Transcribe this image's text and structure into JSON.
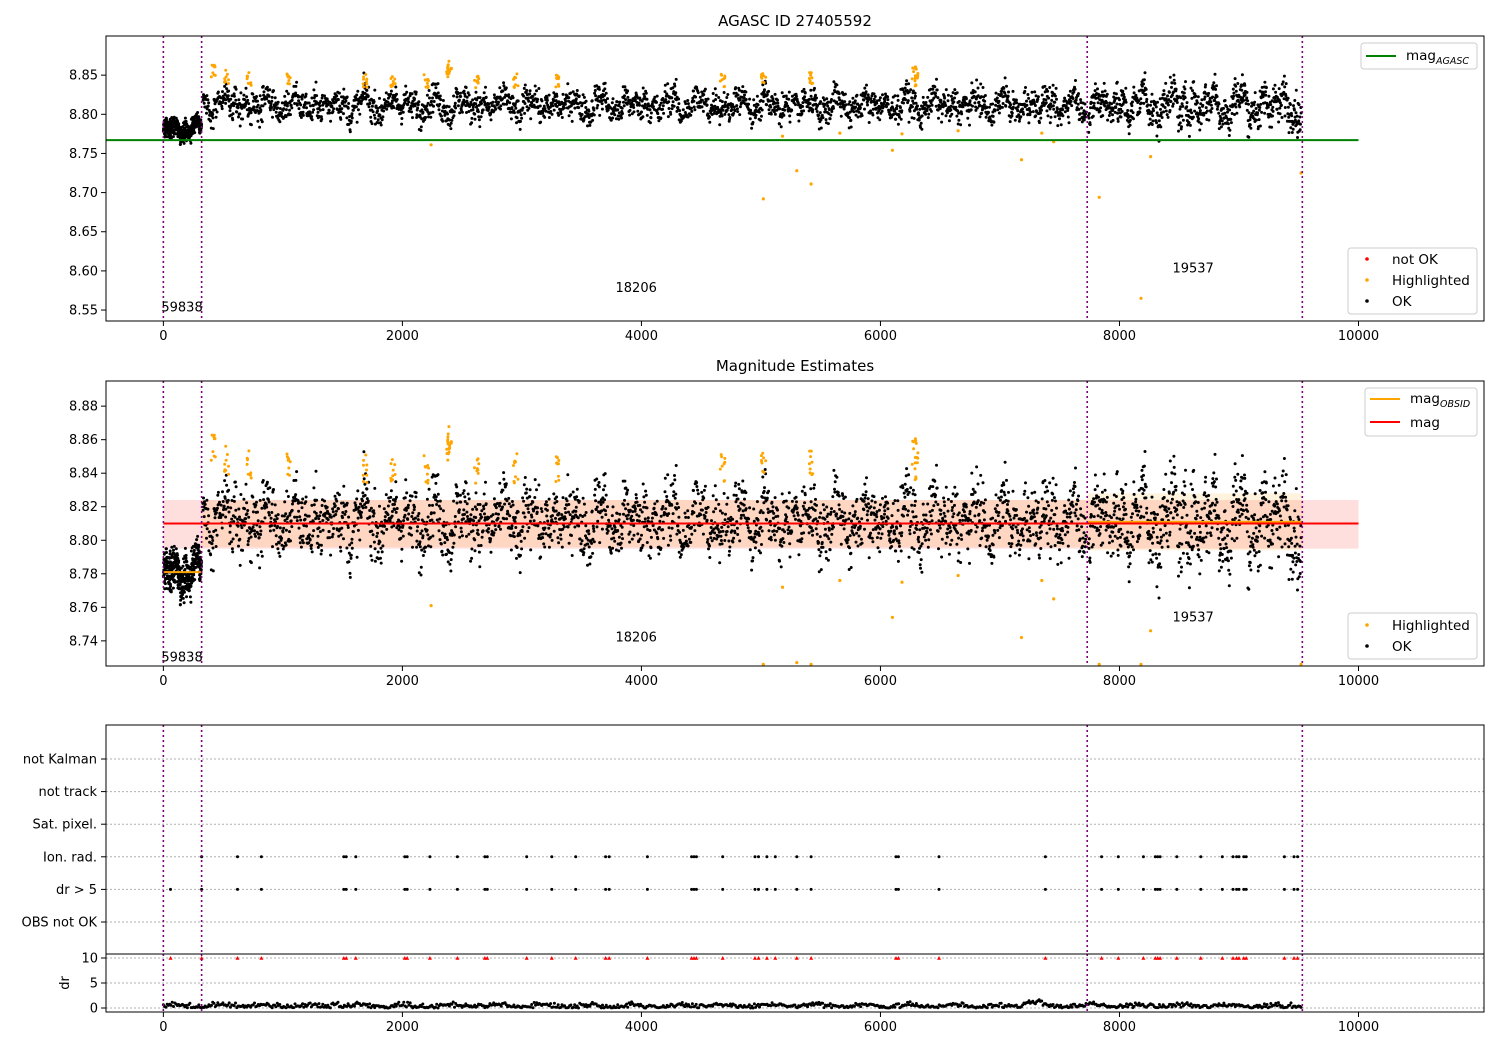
{
  "chart_data": [
    {
      "type": "scatter",
      "title": "AGASC ID 27405592",
      "xlabel": "",
      "ylabel": "",
      "xlim": [
        -480,
        11050
      ],
      "ylim": [
        8.536,
        8.9
      ],
      "x_ticks": [
        "0",
        "2000",
        "4000",
        "6000",
        "8000",
        "10000"
      ],
      "y_ticks": [
        "8.55",
        "8.60",
        "8.65",
        "8.70",
        "8.75",
        "8.80",
        "8.85"
      ],
      "reference_lines": [
        {
          "name": "mag_AGASC",
          "value": 8.767,
          "x_range": [
            0,
            10000
          ],
          "color": "#008000"
        }
      ],
      "obsid_boundaries": [
        0,
        320,
        7730,
        9530
      ],
      "obsid_labels": [
        {
          "text": "59838",
          "x": 0,
          "y": 8.553
        },
        {
          "text": "18206",
          "x": 3800,
          "y": 8.578
        },
        {
          "text": "19537",
          "x": 8460,
          "y": 8.603
        }
      ],
      "series_names": [
        "not OK",
        "Highlighted",
        "OK"
      ],
      "series_colors": [
        "#ff0000",
        "#ffa500",
        "#000000"
      ],
      "highlighted": [
        [
          2240,
          8.761
        ],
        [
          5020,
          8.692
        ],
        [
          5180,
          8.772
        ],
        [
          5300,
          8.728
        ],
        [
          5420,
          8.711
        ],
        [
          5660,
          8.776
        ],
        [
          6100,
          8.754
        ],
        [
          6180,
          8.775
        ],
        [
          6650,
          8.779
        ],
        [
          7180,
          8.742
        ],
        [
          7350,
          8.776
        ],
        [
          7450,
          8.765
        ],
        [
          7830,
          8.694
        ],
        [
          8180,
          8.565
        ],
        [
          8260,
          8.746
        ],
        [
          9520,
          8.725
        ]
      ],
      "legend": [
        {
          "label": "mag",
          "sub": "AGASC"
        },
        {
          "label": "not OK"
        },
        {
          "label": "Highlighted"
        },
        {
          "label": "OK"
        }
      ]
    },
    {
      "type": "scatter",
      "title": "Magnitude Estimates",
      "xlabel": "",
      "ylabel": "",
      "xlim": [
        -480,
        11050
      ],
      "ylim": [
        8.725,
        8.895
      ],
      "x_ticks": [
        "0",
        "2000",
        "4000",
        "6000",
        "8000",
        "10000"
      ],
      "y_ticks": [
        "8.74",
        "8.76",
        "8.78",
        "8.80",
        "8.82",
        "8.84",
        "8.86",
        "8.88"
      ],
      "mean_mag": 8.81,
      "mean_band": [
        8.795,
        8.824
      ],
      "obsid_mags": [
        {
          "x_range": [
            0,
            320
          ],
          "value": 8.781
        },
        {
          "x_range": [
            320,
            7730
          ],
          "value": 8.81
        },
        {
          "x_range": [
            7730,
            9530
          ],
          "value": 8.811
        }
      ],
      "obsid_boundaries": [
        0,
        320,
        7730,
        9530
      ],
      "obsid_labels": [
        {
          "text": "59838",
          "x": 0,
          "y": 8.73
        },
        {
          "text": "18206",
          "x": 3800,
          "y": 8.742
        },
        {
          "text": "19537",
          "x": 8460,
          "y": 8.754
        }
      ],
      "series_names": [
        "Highlighted",
        "OK"
      ],
      "highlighted": [
        [
          2240,
          8.761
        ],
        [
          5180,
          8.772
        ],
        [
          5300,
          8.727
        ],
        [
          5660,
          8.776
        ],
        [
          6100,
          8.754
        ],
        [
          6180,
          8.775
        ],
        [
          6650,
          8.779
        ],
        [
          7180,
          8.742
        ],
        [
          7350,
          8.776
        ],
        [
          7450,
          8.765
        ],
        [
          8260,
          8.746
        ],
        [
          5020,
          8.726
        ],
        [
          5420,
          8.726
        ],
        [
          7830,
          8.726
        ],
        [
          8180,
          8.726
        ],
        [
          9520,
          8.726
        ]
      ],
      "legend": [
        {
          "label": "mag",
          "sub": "OBSID"
        },
        {
          "label": "mag"
        },
        {
          "label": "Highlighted"
        },
        {
          "label": "OK"
        }
      ]
    },
    {
      "type": "scatter",
      "title": "",
      "xlabel": "",
      "ylabel": "",
      "xlim": [
        -480,
        11050
      ],
      "flag_categories": [
        "not Kalman",
        "not track",
        "Sat. pixel.",
        "Ion. rad.",
        "dr > 5",
        "OBS not OK"
      ],
      "flag_points": {
        "Ion. rad.": [
          320,
          620,
          820,
          1510,
          1530,
          1610,
          2020,
          2040,
          2230,
          2460,
          2690,
          2710,
          3040,
          3250,
          3450,
          3700,
          3730,
          4050,
          4420,
          4440,
          4460,
          4680,
          4950,
          4980,
          5050,
          5120,
          5300,
          5420,
          6130,
          6150,
          6490,
          7380,
          7850,
          7990,
          8200,
          8300,
          8320,
          8340,
          8480,
          8680,
          8860,
          8950,
          8980,
          9000,
          9040,
          9060,
          9380,
          9460,
          9490
        ],
        "dr > 5": [
          60,
          320,
          620,
          820,
          1510,
          1530,
          1610,
          2020,
          2040,
          2230,
          2460,
          2690,
          2710,
          3040,
          3250,
          3450,
          3700,
          3730,
          4050,
          4420,
          4440,
          4460,
          4680,
          4950,
          4980,
          5050,
          5120,
          5300,
          5420,
          6130,
          6150,
          6490,
          7380,
          7850,
          7990,
          8200,
          8300,
          8320,
          8340,
          8480,
          8680,
          8860,
          8950,
          8980,
          9000,
          9040,
          9060,
          9380,
          9460,
          9490
        ]
      },
      "obsid_boundaries": [
        0,
        320,
        7730,
        9530
      ]
    },
    {
      "type": "scatter",
      "title": "",
      "xlabel": "",
      "ylabel": "dr",
      "xlim": [
        -480,
        11050
      ],
      "ylim": [
        -0.8,
        10.8
      ],
      "y_ticks": [
        "0",
        "5",
        "10"
      ],
      "x_ticks": [
        "0",
        "2000",
        "4000",
        "6000",
        "8000",
        "10000"
      ],
      "dr_high_markers": [
        60,
        320,
        620,
        820,
        1510,
        1530,
        1610,
        2020,
        2040,
        2230,
        2460,
        2690,
        2710,
        3040,
        3250,
        3450,
        3700,
        3730,
        4050,
        4420,
        4440,
        4460,
        4680,
        4950,
        4980,
        5050,
        5120,
        5300,
        5420,
        6130,
        6150,
        6490,
        7380,
        7850,
        7990,
        8200,
        8300,
        8320,
        8340,
        8480,
        8680,
        8860,
        8950,
        8980,
        9000,
        9040,
        9060,
        9380,
        9460,
        9490
      ],
      "obsid_boundaries": [
        0,
        320,
        7730,
        9530
      ]
    }
  ]
}
